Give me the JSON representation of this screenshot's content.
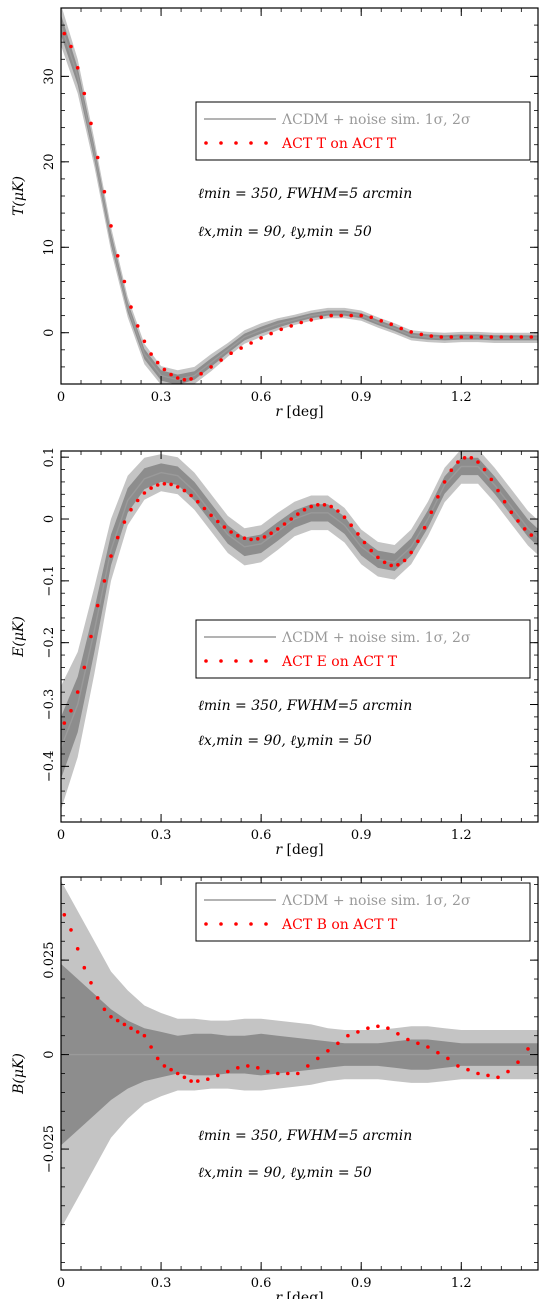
{
  "colors": {
    "band_outer": "#c4c4c4",
    "band_inner": "#8d8d8d",
    "model_line": "#9a9a9a",
    "data_dots": "#ff0000",
    "legend_sim_text": "#9a9a9a",
    "legend_data_text": "#ff0000"
  },
  "chart_data": [
    {
      "type": "line",
      "xlabel": "r [deg]",
      "ylabel": "T(μK)",
      "xlim": [
        0,
        1.43
      ],
      "ylim": [
        -6,
        38
      ],
      "x_ticks": [
        "0",
        "0.3",
        "0.6",
        "0.9",
        "1.2"
      ],
      "x_tick_values": [
        0,
        0.3,
        0.6,
        0.9,
        1.2
      ],
      "y_ticks": [
        "0",
        "10",
        "20",
        "30"
      ],
      "y_tick_values": [
        0,
        10,
        20,
        30
      ],
      "legend": [
        "ΛCDM + noise sim. 1σ, 2σ",
        "ACT T on ACT T"
      ],
      "legend_placement": "upper-right",
      "annotations": [
        "ℓmin = 350, FWHM=5 arcmin",
        "ℓx,min = 90, ℓy,min = 50"
      ],
      "series": [
        {
          "name": "ΛCDM + noise sim. 1σ, 2σ",
          "x": [
            0,
            0.05,
            0.1,
            0.15,
            0.2,
            0.25,
            0.3,
            0.35,
            0.4,
            0.45,
            0.5,
            0.55,
            0.6,
            0.65,
            0.7,
            0.75,
            0.8,
            0.85,
            0.9,
            0.95,
            1.0,
            1.05,
            1.1,
            1.15,
            1.2,
            1.25,
            1.3,
            1.35,
            1.4,
            1.43
          ],
          "y": [
            36,
            30,
            21,
            11,
            3,
            -2.5,
            -5,
            -5.5,
            -5,
            -3.5,
            -2,
            -0.5,
            0.3,
            1,
            1.5,
            2,
            2.3,
            2.3,
            2,
            1.2,
            0.5,
            -0.3,
            -0.5,
            -0.6,
            -0.5,
            -0.5,
            -0.6,
            -0.6,
            -0.6,
            -0.6
          ],
          "band1": [
            1.2,
            1.0,
            0.8,
            0.7,
            0.6,
            0.6,
            0.6,
            0.6,
            0.5,
            0.5,
            0.4,
            0.4,
            0.4,
            0.4,
            0.3,
            0.3,
            0.3,
            0.3,
            0.3,
            0.3,
            0.3,
            0.3,
            0.3,
            0.3,
            0.3,
            0.3,
            0.3,
            0.3,
            0.3,
            0.3
          ],
          "band2": [
            2.4,
            2.0,
            1.6,
            1.4,
            1.2,
            1.2,
            1.1,
            1.1,
            1.0,
            1.0,
            0.8,
            0.8,
            0.8,
            0.7,
            0.6,
            0.6,
            0.6,
            0.6,
            0.6,
            0.6,
            0.6,
            0.6,
            0.6,
            0.6,
            0.6,
            0.6,
            0.6,
            0.6,
            0.6,
            0.6
          ]
        },
        {
          "name": "ACT T on ACT T",
          "x": [
            0.01,
            0.03,
            0.05,
            0.07,
            0.09,
            0.11,
            0.13,
            0.15,
            0.17,
            0.19,
            0.21,
            0.23,
            0.25,
            0.27,
            0.29,
            0.31,
            0.33,
            0.35,
            0.37,
            0.39,
            0.42,
            0.45,
            0.48,
            0.51,
            0.54,
            0.57,
            0.6,
            0.63,
            0.66,
            0.69,
            0.72,
            0.75,
            0.78,
            0.81,
            0.84,
            0.87,
            0.9,
            0.93,
            0.96,
            0.99,
            1.02,
            1.05,
            1.08,
            1.11,
            1.14,
            1.17,
            1.2,
            1.23,
            1.26,
            1.29,
            1.32,
            1.35,
            1.38,
            1.41
          ],
          "y": [
            35,
            33.5,
            31,
            28,
            24.5,
            20.5,
            16.5,
            12.5,
            9,
            6,
            3,
            0.8,
            -1,
            -2.5,
            -3.5,
            -4.3,
            -4.9,
            -5.3,
            -5.5,
            -5.4,
            -4.8,
            -4,
            -3.2,
            -2.4,
            -1.8,
            -1.2,
            -0.6,
            -0.1,
            0.4,
            0.8,
            1.2,
            1.5,
            1.8,
            2,
            2,
            2,
            2,
            1.8,
            1.4,
            1,
            0.5,
            0.1,
            -0.2,
            -0.4,
            -0.5,
            -0.5,
            -0.5,
            -0.5,
            -0.5,
            -0.5,
            -0.5,
            -0.5,
            -0.5,
            -0.5
          ]
        }
      ]
    },
    {
      "type": "line",
      "xlabel": "r [deg]",
      "ylabel": "E(μK)",
      "xlim": [
        0,
        1.43
      ],
      "ylim": [
        -0.49,
        0.11
      ],
      "x_ticks": [
        "0",
        "0.3",
        "0.6",
        "0.9",
        "1.2"
      ],
      "x_tick_values": [
        0,
        0.3,
        0.6,
        0.9,
        1.2
      ],
      "y_ticks": [
        "−0.4",
        "−0.3",
        "−0.2",
        "−0.1",
        "0",
        "0.1"
      ],
      "y_tick_values": [
        -0.4,
        -0.3,
        -0.2,
        -0.1,
        0,
        0.1
      ],
      "legend": [
        "ΛCDM + noise sim. 1σ, 2σ",
        "ACT E on ACT T"
      ],
      "legend_placement": "center-right",
      "annotations": [
        "ℓmin = 350, FWHM=5 arcmin",
        "ℓx,min = 90, ℓy,min = 50"
      ],
      "series": [
        {
          "name": "ΛCDM + noise sim. 1σ, 2σ",
          "x": [
            0,
            0.05,
            0.1,
            0.15,
            0.2,
            0.25,
            0.3,
            0.35,
            0.4,
            0.45,
            0.5,
            0.55,
            0.6,
            0.65,
            0.7,
            0.75,
            0.8,
            0.85,
            0.9,
            0.95,
            1.0,
            1.05,
            1.1,
            1.15,
            1.2,
            1.25,
            1.3,
            1.35,
            1.4,
            1.43
          ],
          "y": [
            -0.37,
            -0.3,
            -0.18,
            -0.05,
            0.03,
            0.065,
            0.075,
            0.07,
            0.045,
            0.01,
            -0.025,
            -0.045,
            -0.04,
            -0.02,
            0.0,
            0.01,
            0.01,
            -0.01,
            -0.045,
            -0.065,
            -0.07,
            -0.045,
            0.0,
            0.055,
            0.085,
            0.085,
            0.055,
            0.02,
            -0.015,
            -0.03
          ],
          "band1": [
            0.05,
            0.045,
            0.035,
            0.025,
            0.02,
            0.017,
            0.015,
            0.015,
            0.015,
            0.015,
            0.015,
            0.015,
            0.015,
            0.015,
            0.014,
            0.014,
            0.014,
            0.014,
            0.014,
            0.014,
            0.014,
            0.014,
            0.014,
            0.014,
            0.014,
            0.014,
            0.014,
            0.014,
            0.014,
            0.014
          ],
          "band2": [
            0.1,
            0.085,
            0.07,
            0.05,
            0.04,
            0.034,
            0.03,
            0.03,
            0.03,
            0.03,
            0.03,
            0.03,
            0.03,
            0.03,
            0.028,
            0.028,
            0.028,
            0.028,
            0.028,
            0.028,
            0.028,
            0.028,
            0.028,
            0.028,
            0.028,
            0.028,
            0.028,
            0.028,
            0.028,
            0.028
          ]
        },
        {
          "name": "ACT E on ACT T",
          "x": [
            0.01,
            0.03,
            0.05,
            0.07,
            0.09,
            0.11,
            0.13,
            0.15,
            0.17,
            0.19,
            0.21,
            0.23,
            0.25,
            0.27,
            0.29,
            0.31,
            0.33,
            0.35,
            0.37,
            0.39,
            0.41,
            0.43,
            0.45,
            0.47,
            0.49,
            0.51,
            0.53,
            0.55,
            0.57,
            0.59,
            0.61,
            0.63,
            0.65,
            0.67,
            0.69,
            0.71,
            0.73,
            0.75,
            0.77,
            0.79,
            0.81,
            0.83,
            0.85,
            0.87,
            0.89,
            0.91,
            0.93,
            0.95,
            0.97,
            0.99,
            1.01,
            1.03,
            1.05,
            1.07,
            1.09,
            1.11,
            1.13,
            1.15,
            1.17,
            1.19,
            1.21,
            1.23,
            1.25,
            1.27,
            1.29,
            1.31,
            1.33,
            1.35,
            1.37,
            1.39,
            1.41
          ],
          "y": [
            -0.33,
            -0.31,
            -0.28,
            -0.24,
            -0.19,
            -0.14,
            -0.1,
            -0.06,
            -0.03,
            -0.005,
            0.015,
            0.03,
            0.042,
            0.05,
            0.055,
            0.057,
            0.056,
            0.052,
            0.046,
            0.038,
            0.028,
            0.017,
            0.006,
            -0.004,
            -0.013,
            -0.021,
            -0.027,
            -0.031,
            -0.033,
            -0.032,
            -0.029,
            -0.023,
            -0.016,
            -0.008,
            0.0,
            0.008,
            0.015,
            0.02,
            0.023,
            0.023,
            0.02,
            0.013,
            0.003,
            -0.01,
            -0.024,
            -0.038,
            -0.051,
            -0.062,
            -0.07,
            -0.075,
            -0.074,
            -0.067,
            -0.054,
            -0.036,
            -0.014,
            0.011,
            0.036,
            0.06,
            0.079,
            0.092,
            0.099,
            0.099,
            0.092,
            0.08,
            0.064,
            0.046,
            0.028,
            0.011,
            -0.003,
            -0.016,
            -0.026
          ]
        }
      ]
    },
    {
      "type": "line",
      "xlabel": "r [deg]",
      "ylabel": "B(μK)",
      "xlim": [
        0,
        1.43
      ],
      "ylim": [
        -0.057,
        0.047
      ],
      "x_ticks": [
        "0",
        "0.3",
        "0.6",
        "0.9",
        "1.2"
      ],
      "x_tick_values": [
        0,
        0.3,
        0.6,
        0.9,
        1.2
      ],
      "y_ticks": [
        "−0.025",
        "0",
        "0.025"
      ],
      "y_tick_values": [
        -0.025,
        0,
        0.025
      ],
      "legend": [
        "ΛCDM + noise sim. 1σ, 2σ",
        "ACT B on ACT T"
      ],
      "legend_placement": "top-right",
      "annotations": [
        "ℓmin = 350, FWHM=5 arcmin",
        "ℓx,min = 90, ℓy,min = 50"
      ],
      "series": [
        {
          "name": "ΛCDM + noise sim. 1σ, 2σ",
          "x": [
            0,
            0.05,
            0.1,
            0.15,
            0.2,
            0.25,
            0.3,
            0.35,
            0.4,
            0.45,
            0.5,
            0.55,
            0.6,
            0.65,
            0.7,
            0.75,
            0.8,
            0.85,
            0.9,
            0.95,
            1.0,
            1.05,
            1.1,
            1.15,
            1.2,
            1.25,
            1.3,
            1.35,
            1.4,
            1.43
          ],
          "y": [
            0,
            0,
            0,
            0,
            0,
            0,
            0,
            0,
            0,
            0,
            0,
            0,
            0,
            0,
            0,
            0,
            0,
            0,
            0,
            0,
            0,
            0,
            0,
            0,
            0,
            0,
            0,
            0,
            0,
            0
          ],
          "band1": [
            0.024,
            0.02,
            0.016,
            0.012,
            0.009,
            0.007,
            0.006,
            0.005,
            0.0055,
            0.0055,
            0.005,
            0.005,
            0.0055,
            0.005,
            0.0045,
            0.004,
            0.0035,
            0.003,
            0.003,
            0.003,
            0.0035,
            0.004,
            0.004,
            0.0035,
            0.003,
            0.003,
            0.003,
            0.003,
            0.003,
            0.003
          ],
          "band2": [
            0.046,
            0.038,
            0.03,
            0.022,
            0.017,
            0.013,
            0.011,
            0.0095,
            0.0095,
            0.009,
            0.009,
            0.0095,
            0.0095,
            0.009,
            0.0085,
            0.008,
            0.007,
            0.0065,
            0.0065,
            0.0065,
            0.007,
            0.0075,
            0.0075,
            0.007,
            0.0065,
            0.0065,
            0.0065,
            0.0065,
            0.0065,
            0.0065
          ]
        },
        {
          "name": "ACT B on ACT T",
          "x": [
            0.01,
            0.03,
            0.05,
            0.07,
            0.09,
            0.11,
            0.13,
            0.15,
            0.17,
            0.19,
            0.21,
            0.23,
            0.25,
            0.27,
            0.29,
            0.31,
            0.33,
            0.35,
            0.37,
            0.39,
            0.41,
            0.44,
            0.47,
            0.5,
            0.53,
            0.56,
            0.59,
            0.62,
            0.65,
            0.68,
            0.71,
            0.74,
            0.77,
            0.8,
            0.83,
            0.86,
            0.89,
            0.92,
            0.95,
            0.98,
            1.01,
            1.04,
            1.07,
            1.1,
            1.13,
            1.16,
            1.19,
            1.22,
            1.25,
            1.28,
            1.31,
            1.34,
            1.37,
            1.4
          ],
          "y": [
            0.037,
            0.033,
            0.028,
            0.023,
            0.019,
            0.015,
            0.012,
            0.01,
            0.009,
            0.008,
            0.007,
            0.006,
            0.005,
            0.002,
            -0.001,
            -0.003,
            -0.004,
            -0.005,
            -0.006,
            -0.007,
            -0.007,
            -0.0065,
            -0.0055,
            -0.0045,
            -0.0035,
            -0.003,
            -0.0035,
            -0.0045,
            -0.005,
            -0.005,
            -0.005,
            -0.003,
            -0.001,
            0.001,
            0.003,
            0.005,
            0.006,
            0.007,
            0.0075,
            0.007,
            0.0055,
            0.004,
            0.003,
            0.002,
            0.0005,
            -0.001,
            -0.003,
            -0.004,
            -0.005,
            -0.0055,
            -0.006,
            -0.0045,
            -0.002,
            0.0015
          ]
        }
      ]
    }
  ]
}
